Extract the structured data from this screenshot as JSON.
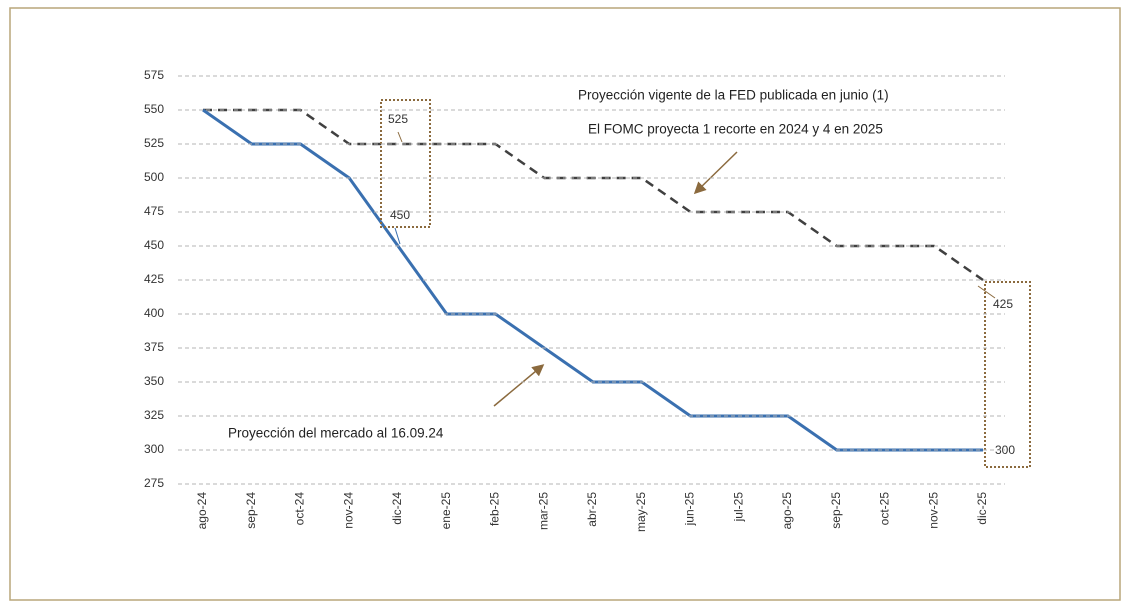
{
  "chart_data": {
    "type": "line",
    "categories": [
      "ago-24",
      "sep-24",
      "oct-24",
      "nov-24",
      "dic-24",
      "ene-25",
      "feb-25",
      "mar-25",
      "abr-25",
      "may-25",
      "jun-25",
      "jul-25",
      "ago-25",
      "sep-25",
      "oct-25",
      "nov-25",
      "dic-25"
    ],
    "series": [
      {
        "color": "#3a70b0",
        "dash": false,
        "values": [
          550,
          525,
          525,
          500,
          450,
          400,
          400,
          375,
          350,
          350,
          325,
          325,
          325,
          300,
          300,
          300,
          300
        ]
      },
      {
        "color": "#404040",
        "dash": true,
        "values": [
          550,
          550,
          550,
          525,
          525,
          525,
          525,
          500,
          500,
          500,
          475,
          475,
          475,
          450,
          450,
          450,
          425
        ]
      }
    ],
    "ylim": [
      275,
      575
    ],
    "yticks": [
      275,
      300,
      325,
      350,
      375,
      400,
      425,
      450,
      475,
      500,
      525,
      550,
      575
    ],
    "grid": true,
    "annotations": [
      "Proyección vigente de la FED publicada en junio (1)",
      "El FOMC proyecta 1 recorte en 2024 y 4 en 2025",
      "Proyección del mercado al 16.09.24"
    ]
  }
}
